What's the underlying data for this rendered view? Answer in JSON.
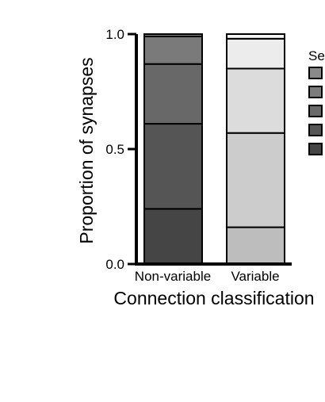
{
  "chart_data": {
    "type": "bar",
    "stacked": true,
    "categories": [
      "Non-variable",
      "Variable"
    ],
    "segments": [
      {
        "category": "Non-variable",
        "values": [
          0.24,
          0.37,
          0.26,
          0.12,
          0.01
        ],
        "colors": [
          "#454545",
          "#555555",
          "#686868",
          "#7a7a7a",
          "#909090"
        ]
      },
      {
        "category": "Variable",
        "values": [
          0.16,
          0.41,
          0.28,
          0.13,
          0.02
        ],
        "colors": [
          "#bdbdbd",
          "#cccccc",
          "#dcdcdc",
          "#ececec",
          "#f7f7f7"
        ]
      }
    ],
    "xlabel": "Connection classification",
    "ylabel": "Proportion of synapses",
    "ylim": [
      0,
      1.0
    ],
    "yticks": [
      "0.0",
      "0.5",
      "1.0"
    ],
    "legend": {
      "title": "Se",
      "placement": "right",
      "swatch_colors": [
        "#8a8a8a",
        "#7c7c7c",
        "#6a6a6a",
        "#575757",
        "#454545"
      ]
    }
  }
}
